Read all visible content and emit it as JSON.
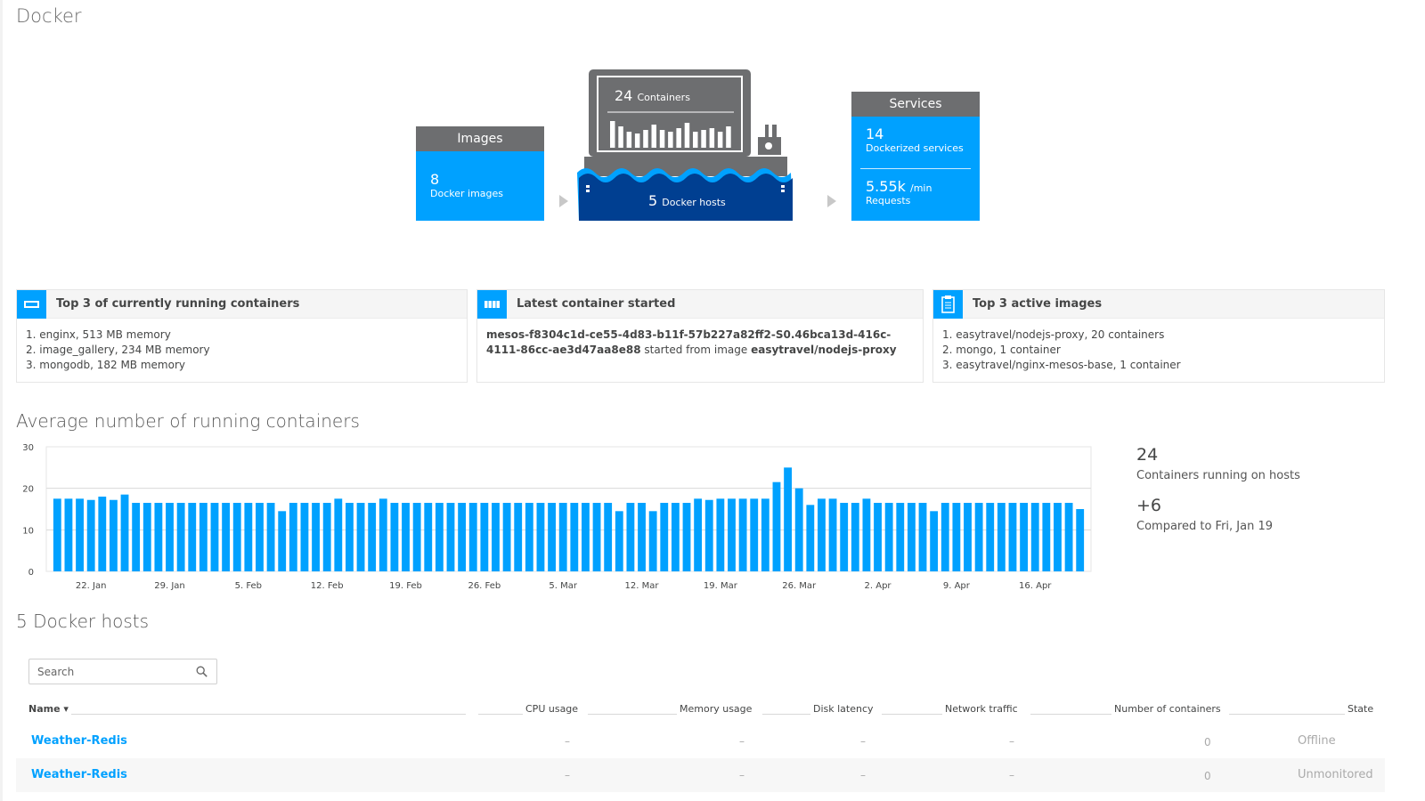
{
  "page": {
    "title": "Docker"
  },
  "overview": {
    "images": {
      "header": "Images",
      "count": "8",
      "label": "Docker images"
    },
    "containers": {
      "count": "24",
      "label": "Containers"
    },
    "hosts": {
      "count": "5",
      "label": "Docker hosts"
    },
    "services": {
      "header": "Services",
      "count": "14",
      "label": "Dockerized services",
      "requests_value": "5.55k",
      "requests_unit": "/min",
      "requests_label": "Requests"
    }
  },
  "cards": {
    "running": {
      "title": "Top 3 of currently running containers",
      "items": [
        "1. enginx, 513 MB memory",
        "2. image_gallery, 234 MB memory",
        "3. mongodb, 182 MB memory"
      ]
    },
    "latest": {
      "title": "Latest container started",
      "container_id": "mesos-f8304c1d-ce55-4d83-b11f-57b227a82ff2-S0.46bca13d-416c-4111-86cc-ae3d47aa8e88",
      "connector": "started from image",
      "image": "easytravel/nodejs-proxy"
    },
    "images": {
      "title": "Top 3 active images",
      "items": [
        "1. easytravel/nodejs-proxy, 20 containers",
        "2. mongo, 1 container",
        "3. easytravel/nginx-mesos-base, 1 container"
      ]
    }
  },
  "chart_section": {
    "title": "Average number of running containers",
    "kpi_value": "24",
    "kpi_label": "Containers running on hosts",
    "delta_value": "+6",
    "delta_label": "Compared to Fri, Jan 19"
  },
  "chart_data": {
    "type": "bar",
    "title": "Average number of running containers",
    "ylim": [
      0,
      30
    ],
    "yticks": [
      0,
      10,
      20,
      30
    ],
    "xtick_labels": [
      "22. Jan",
      "29. Jan",
      "5. Feb",
      "12. Feb",
      "19. Feb",
      "26. Feb",
      "5. Mar",
      "12. Mar",
      "19. Mar",
      "26. Mar",
      "2. Apr",
      "9. Apr",
      "16. Apr"
    ],
    "xtick_bar_index": [
      3,
      10,
      17,
      24,
      31,
      38,
      45,
      52,
      59,
      66,
      73,
      80,
      87
    ],
    "color": "#00a1ff",
    "values": [
      17.5,
      17.5,
      17.5,
      17.2,
      18,
      17.2,
      18.5,
      16.5,
      16.5,
      16.5,
      16.5,
      16.5,
      16.5,
      16.5,
      16.5,
      16.5,
      16.5,
      16.5,
      16.5,
      16.5,
      14.5,
      16.5,
      16.5,
      16.5,
      16.5,
      17.5,
      16.5,
      16.5,
      16.5,
      17.5,
      16.5,
      16.5,
      16.5,
      16.5,
      16.5,
      16.5,
      16.5,
      16.5,
      16.5,
      16.5,
      16.5,
      16.5,
      16.5,
      16.5,
      16.5,
      16.5,
      16.5,
      16.5,
      16.5,
      16.5,
      14.5,
      16.5,
      16.5,
      14.5,
      16.5,
      16.5,
      16.5,
      17.5,
      17.2,
      17.5,
      17.5,
      17.5,
      17.5,
      17.5,
      21.5,
      25,
      20,
      16,
      17.5,
      17.5,
      16.5,
      16.5,
      17.5,
      16.5,
      16.5,
      16.5,
      16.5,
      16.5,
      14.5,
      16.5,
      16.5,
      16.5,
      16.5,
      16.5,
      16.5,
      16.5,
      16.5,
      16.5,
      16.5,
      16.5,
      16.5,
      15
    ]
  },
  "hosts_section": {
    "title": "5 Docker hosts",
    "search_placeholder": "Search",
    "columns": {
      "name": "Name",
      "sort_indicator": "▾",
      "cpu": "CPU usage",
      "memory": "Memory usage",
      "disk": "Disk latency",
      "network": "Network traffic",
      "containers": "Number of containers",
      "state": "State"
    },
    "rows": [
      {
        "name": "Weather-Redis",
        "cpu": "–",
        "memory": "–",
        "disk": "–",
        "network": "–",
        "containers": "0",
        "state": "Offline"
      },
      {
        "name": "Weather-Redis",
        "cpu": "–",
        "memory": "–",
        "disk": "–",
        "network": "–",
        "containers": "0",
        "state": "Unmonitored"
      }
    ]
  }
}
